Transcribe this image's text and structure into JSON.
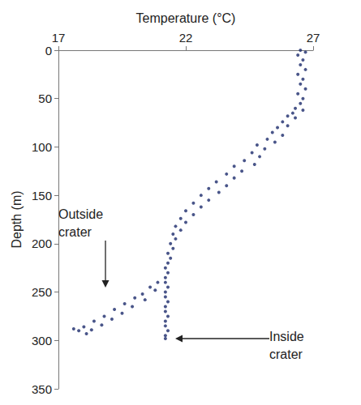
{
  "chart_data": {
    "type": "scatter",
    "xlabel": "Temperature (°C)",
    "ylabel": "Depth (m)",
    "color": "#1b2a6b",
    "marker": "circle",
    "grid": false,
    "xlim": [
      17,
      27
    ],
    "xticks": [
      17,
      22,
      27
    ],
    "ylim": [
      0,
      350
    ],
    "yticks": [
      0,
      50,
      100,
      150,
      200,
      250,
      300,
      350
    ],
    "annotations": [
      {
        "text": "Outside crater"
      },
      {
        "text": "Inside crater"
      }
    ],
    "x": [
      26.5,
      26.7,
      26.4,
      26.6,
      26.5,
      26.7,
      26.4,
      26.6,
      26.5,
      26.7,
      26.4,
      26.6,
      26.5,
      26.3,
      26.6,
      26.2,
      26.0,
      26.3,
      25.8,
      26.0,
      25.6,
      25.4,
      25.8,
      25.2,
      25.5,
      24.8,
      25.1,
      24.6,
      24.9,
      24.3,
      24.7,
      23.9,
      24.2,
      23.6,
      23.9,
      23.2,
      23.6,
      22.9,
      23.3,
      22.6,
      22.9,
      22.3,
      22.6,
      22.0,
      22.3,
      21.8,
      22.0,
      21.6,
      21.8,
      21.5,
      21.6,
      21.4,
      21.5,
      21.3,
      21.4,
      21.3,
      21.2,
      21.3,
      21.2,
      21.2,
      21.3,
      21.2,
      21.2,
      21.3,
      21.2,
      21.2,
      21.3,
      21.2,
      21.2,
      21.3,
      21.2,
      21.2,
      20.9,
      20.6,
      20.8,
      20.3,
      20.0,
      20.4,
      19.6,
      19.9,
      19.2,
      19.5,
      18.8,
      19.1,
      18.4,
      18.7,
      18.0,
      18.3,
      17.8,
      18.1,
      17.6
    ],
    "values": [
      0,
      2,
      5,
      10,
      15,
      20,
      25,
      30,
      35,
      40,
      45,
      50,
      55,
      60,
      62,
      65,
      68,
      70,
      74,
      78,
      80,
      85,
      88,
      92,
      95,
      98,
      102,
      106,
      110,
      114,
      118,
      120,
      125,
      128,
      132,
      136,
      140,
      143,
      147,
      150,
      155,
      158,
      162,
      166,
      170,
      174,
      178,
      182,
      186,
      190,
      195,
      200,
      205,
      210,
      215,
      220,
      225,
      230,
      235,
      240,
      245,
      250,
      255,
      260,
      265,
      270,
      275,
      280,
      285,
      290,
      295,
      298,
      240,
      245,
      248,
      252,
      256,
      258,
      262,
      265,
      268,
      272,
      275,
      278,
      280,
      284,
      286,
      289,
      290,
      293,
      288
    ]
  }
}
